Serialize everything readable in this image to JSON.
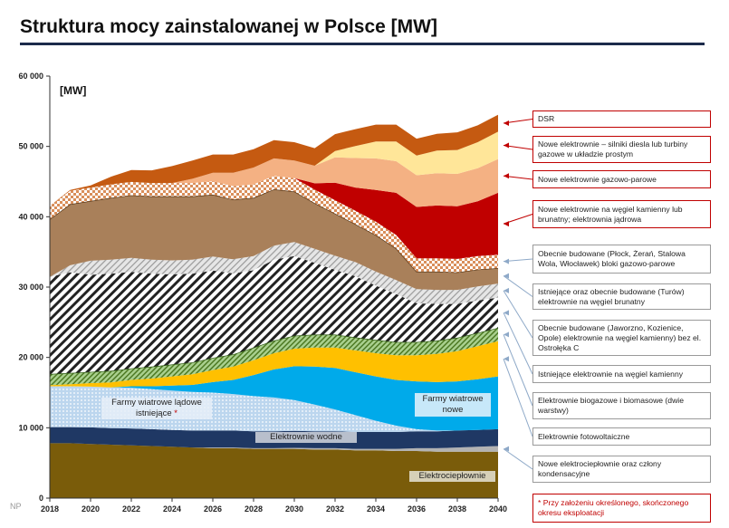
{
  "title": "Struktura mocy zainstalowanej w Polsce [MW]",
  "footer_mark": "NP",
  "chart_data": {
    "type": "area",
    "stacked": true,
    "unit_label": "[MW]",
    "xlim": [
      2018,
      2040
    ],
    "ylim": [
      0,
      60000
    ],
    "x_ticks": [
      "2018",
      "2020",
      "2022",
      "2024",
      "2026",
      "2028",
      "2030",
      "2032",
      "2034",
      "2036",
      "2038",
      "2040"
    ],
    "y_ticks": [
      "0",
      "10 000",
      "20 000",
      "30 000",
      "40 000",
      "50 000",
      "60 000"
    ],
    "x": [
      2018,
      2019,
      2020,
      2021,
      2022,
      2023,
      2024,
      2025,
      2026,
      2027,
      2028,
      2029,
      2030,
      2031,
      2032,
      2033,
      2034,
      2035,
      2036,
      2037,
      2038,
      2039,
      2040
    ],
    "series": [
      {
        "name": "Elektrociepłownie",
        "color": "#7a5c0a",
        "values": [
          7800,
          7800,
          7700,
          7600,
          7500,
          7400,
          7300,
          7200,
          7100,
          7100,
          7000,
          7000,
          7000,
          6900,
          6900,
          6800,
          6800,
          6700,
          6700,
          6600,
          6600,
          6600,
          6600
        ]
      },
      {
        "name": "Nowe elektrociepłownie oraz człony kondensacyjne",
        "color": "#b3b3b3",
        "values": [
          0,
          0,
          0,
          0,
          0,
          0,
          0,
          0,
          100,
          100,
          100,
          100,
          150,
          200,
          200,
          200,
          200,
          300,
          400,
          500,
          600,
          700,
          800
        ]
      },
      {
        "name": "Elektrownie wodne",
        "color": "#1f3864",
        "values": [
          2300,
          2300,
          2350,
          2350,
          2400,
          2400,
          2400,
          2400,
          2400,
          2400,
          2400,
          2400,
          2400,
          2400,
          2400,
          2400,
          2400,
          2400,
          2400,
          2400,
          2400,
          2400,
          2400
        ]
      },
      {
        "name": "Farmy wiatrowe lądowe istniejące",
        "color": "#dbe8f5",
        "values": [
          5800,
          5800,
          5800,
          5800,
          5800,
          5700,
          5600,
          5500,
          5400,
          5200,
          5000,
          4800,
          4400,
          3800,
          3100,
          2400,
          1600,
          900,
          300,
          100,
          0,
          0,
          0
        ]
      },
      {
        "name": "Farmy wiatrowe nowe",
        "color": "#00aaea",
        "values": [
          0,
          0,
          0,
          0,
          200,
          400,
          700,
          1000,
          1500,
          2000,
          3000,
          4000,
          4800,
          5400,
          5900,
          6100,
          6300,
          6500,
          6800,
          6900,
          7000,
          7200,
          7500
        ]
      },
      {
        "name": "Elektrownie fotowoltaiczne",
        "color": "#ffc000",
        "values": [
          150,
          300,
          500,
          700,
          900,
          1100,
          1300,
          1500,
          1700,
          1900,
          2100,
          2300,
          2500,
          2700,
          2900,
          3100,
          3300,
          3500,
          3700,
          4000,
          4300,
          4700,
          5000
        ]
      },
      {
        "name": "Elektrownie biogazowe i biomasowe (dwie warstwy)",
        "color": "#7aa63d",
        "values": [
          1600,
          1600,
          1600,
          1650,
          1650,
          1700,
          1700,
          1700,
          1750,
          1750,
          1800,
          1800,
          1850,
          1850,
          1850,
          1850,
          1900,
          1900,
          1900,
          1900,
          1900,
          1900,
          1900
        ]
      },
      {
        "name": "Istniejące elektrownie na węgiel kamienny",
        "color": "#ffffff",
        "values": [
          13800,
          14300,
          13800,
          13800,
          13700,
          13200,
          12800,
          12600,
          12400,
          11500,
          11000,
          11500,
          11300,
          10200,
          9200,
          8700,
          7700,
          6800,
          5500,
          5200,
          4800,
          4600,
          4300
        ]
      },
      {
        "name": "Obecnie budowane (Jaworzno, Kozienice, Opole) elektrownie na węgiel kamienny bez el. Ostrołęka C",
        "color": "#cfcfcf",
        "values": [
          0,
          1000,
          2000,
          2000,
          2000,
          2000,
          2000,
          2000,
          2000,
          2000,
          2000,
          2000,
          2000,
          2000,
          2000,
          2000,
          2000,
          2000,
          2000,
          2000,
          2000,
          2000,
          2000
        ]
      },
      {
        "name": "Istniejące oraz obecnie budowane (Turów) elektrownie na węgiel brunatny",
        "color": "#a9805a",
        "values": [
          8200,
          8700,
          8500,
          8800,
          8900,
          9000,
          9100,
          9000,
          8800,
          8500,
          8300,
          8000,
          7200,
          6500,
          6000,
          5400,
          5200,
          4500,
          2500,
          2600,
          2500,
          2400,
          2200
        ]
      },
      {
        "name": "Obecnie budowane (Płock, Żerań, Stalowa Wola, Włocławek) bloki gazowo-parowe",
        "color": "#f0c4a0",
        "values": [
          1900,
          1900,
          1900,
          1900,
          1900,
          1900,
          1900,
          1900,
          1900,
          1900,
          1900,
          1900,
          1900,
          1900,
          1900,
          1900,
          1900,
          1900,
          1900,
          1900,
          1900,
          1900,
          1900
        ]
      },
      {
        "name": "Nowe elektrownie na węgiel kamienny lub brunatny; elektrownia jądrowa",
        "color": "#c00000",
        "values": [
          0,
          0,
          0,
          0,
          0,
          0,
          0,
          0,
          0,
          0,
          0,
          0,
          0,
          900,
          2500,
          3300,
          4500,
          6000,
          7300,
          7500,
          7500,
          7800,
          8800
        ]
      },
      {
        "name": "Nowe elektrownie gazowo-parowe",
        "color": "#f4b183",
        "values": [
          0,
          0,
          0,
          0,
          0,
          0,
          0,
          600,
          1200,
          1900,
          2400,
          2500,
          2500,
          2500,
          3600,
          4200,
          4500,
          4500,
          4500,
          4600,
          4600,
          4700,
          4800
        ]
      },
      {
        "name": "Nowe elektrownie – silniki diesla lub turbiny gazowe w układzie prostym",
        "color": "#ffe699",
        "values": [
          0,
          0,
          0,
          0,
          0,
          0,
          0,
          0,
          0,
          0,
          0,
          0,
          0,
          0,
          900,
          1700,
          2400,
          2800,
          2800,
          3200,
          3400,
          3700,
          3900
        ]
      },
      {
        "name": "DSR",
        "color": "#c55a11",
        "values": [
          0,
          100,
          300,
          1100,
          1700,
          1800,
          2400,
          2600,
          2600,
          2600,
          2600,
          2600,
          2600,
          2500,
          2400,
          2400,
          2400,
          2400,
          2400,
          2400,
          2500,
          2400,
          2400
        ]
      }
    ],
    "legend_callouts": [
      "DSR",
      "Nowe elektrownie – silniki diesla lub turbiny gazowe w układzie prostym",
      "Nowe elektrownie gazowo-parowe",
      "Nowe elektrownie na węgiel kamienny lub brunatny; elektrownia jądrowa",
      "Obecnie budowane (Płock, Żerań, Stalowa Wola, Włocławek) bloki gazowo-parowe",
      "Istniejące oraz obecnie budowane (Turów) elektrownie na węgiel brunatny",
      "Obecnie budowane (Jaworzno, Kozienice, Opole) elektrownie na węgiel kamienny) bez el. Ostrołęka C",
      "Istniejące elektrownie na węgiel kamienny",
      "Elektrownie biogazowe i biomasowe (dwie warstwy)",
      "Elektrownie fotowoltaiczne",
      "Nowe elektrociepłownie oraz człony kondensacyjne"
    ],
    "inside_labels": {
      "wind_existing": "Farmy wiatrowe lądowe istniejące",
      "wind_existing_mark": "*",
      "wind_new": "Farmy wiatrowe nowe",
      "hydro": "Elektrownie wodne",
      "chp": "Elektrociepłownie"
    },
    "footnote": "* Przy założeniu określonego, skończonego okresu eksploatacji"
  }
}
